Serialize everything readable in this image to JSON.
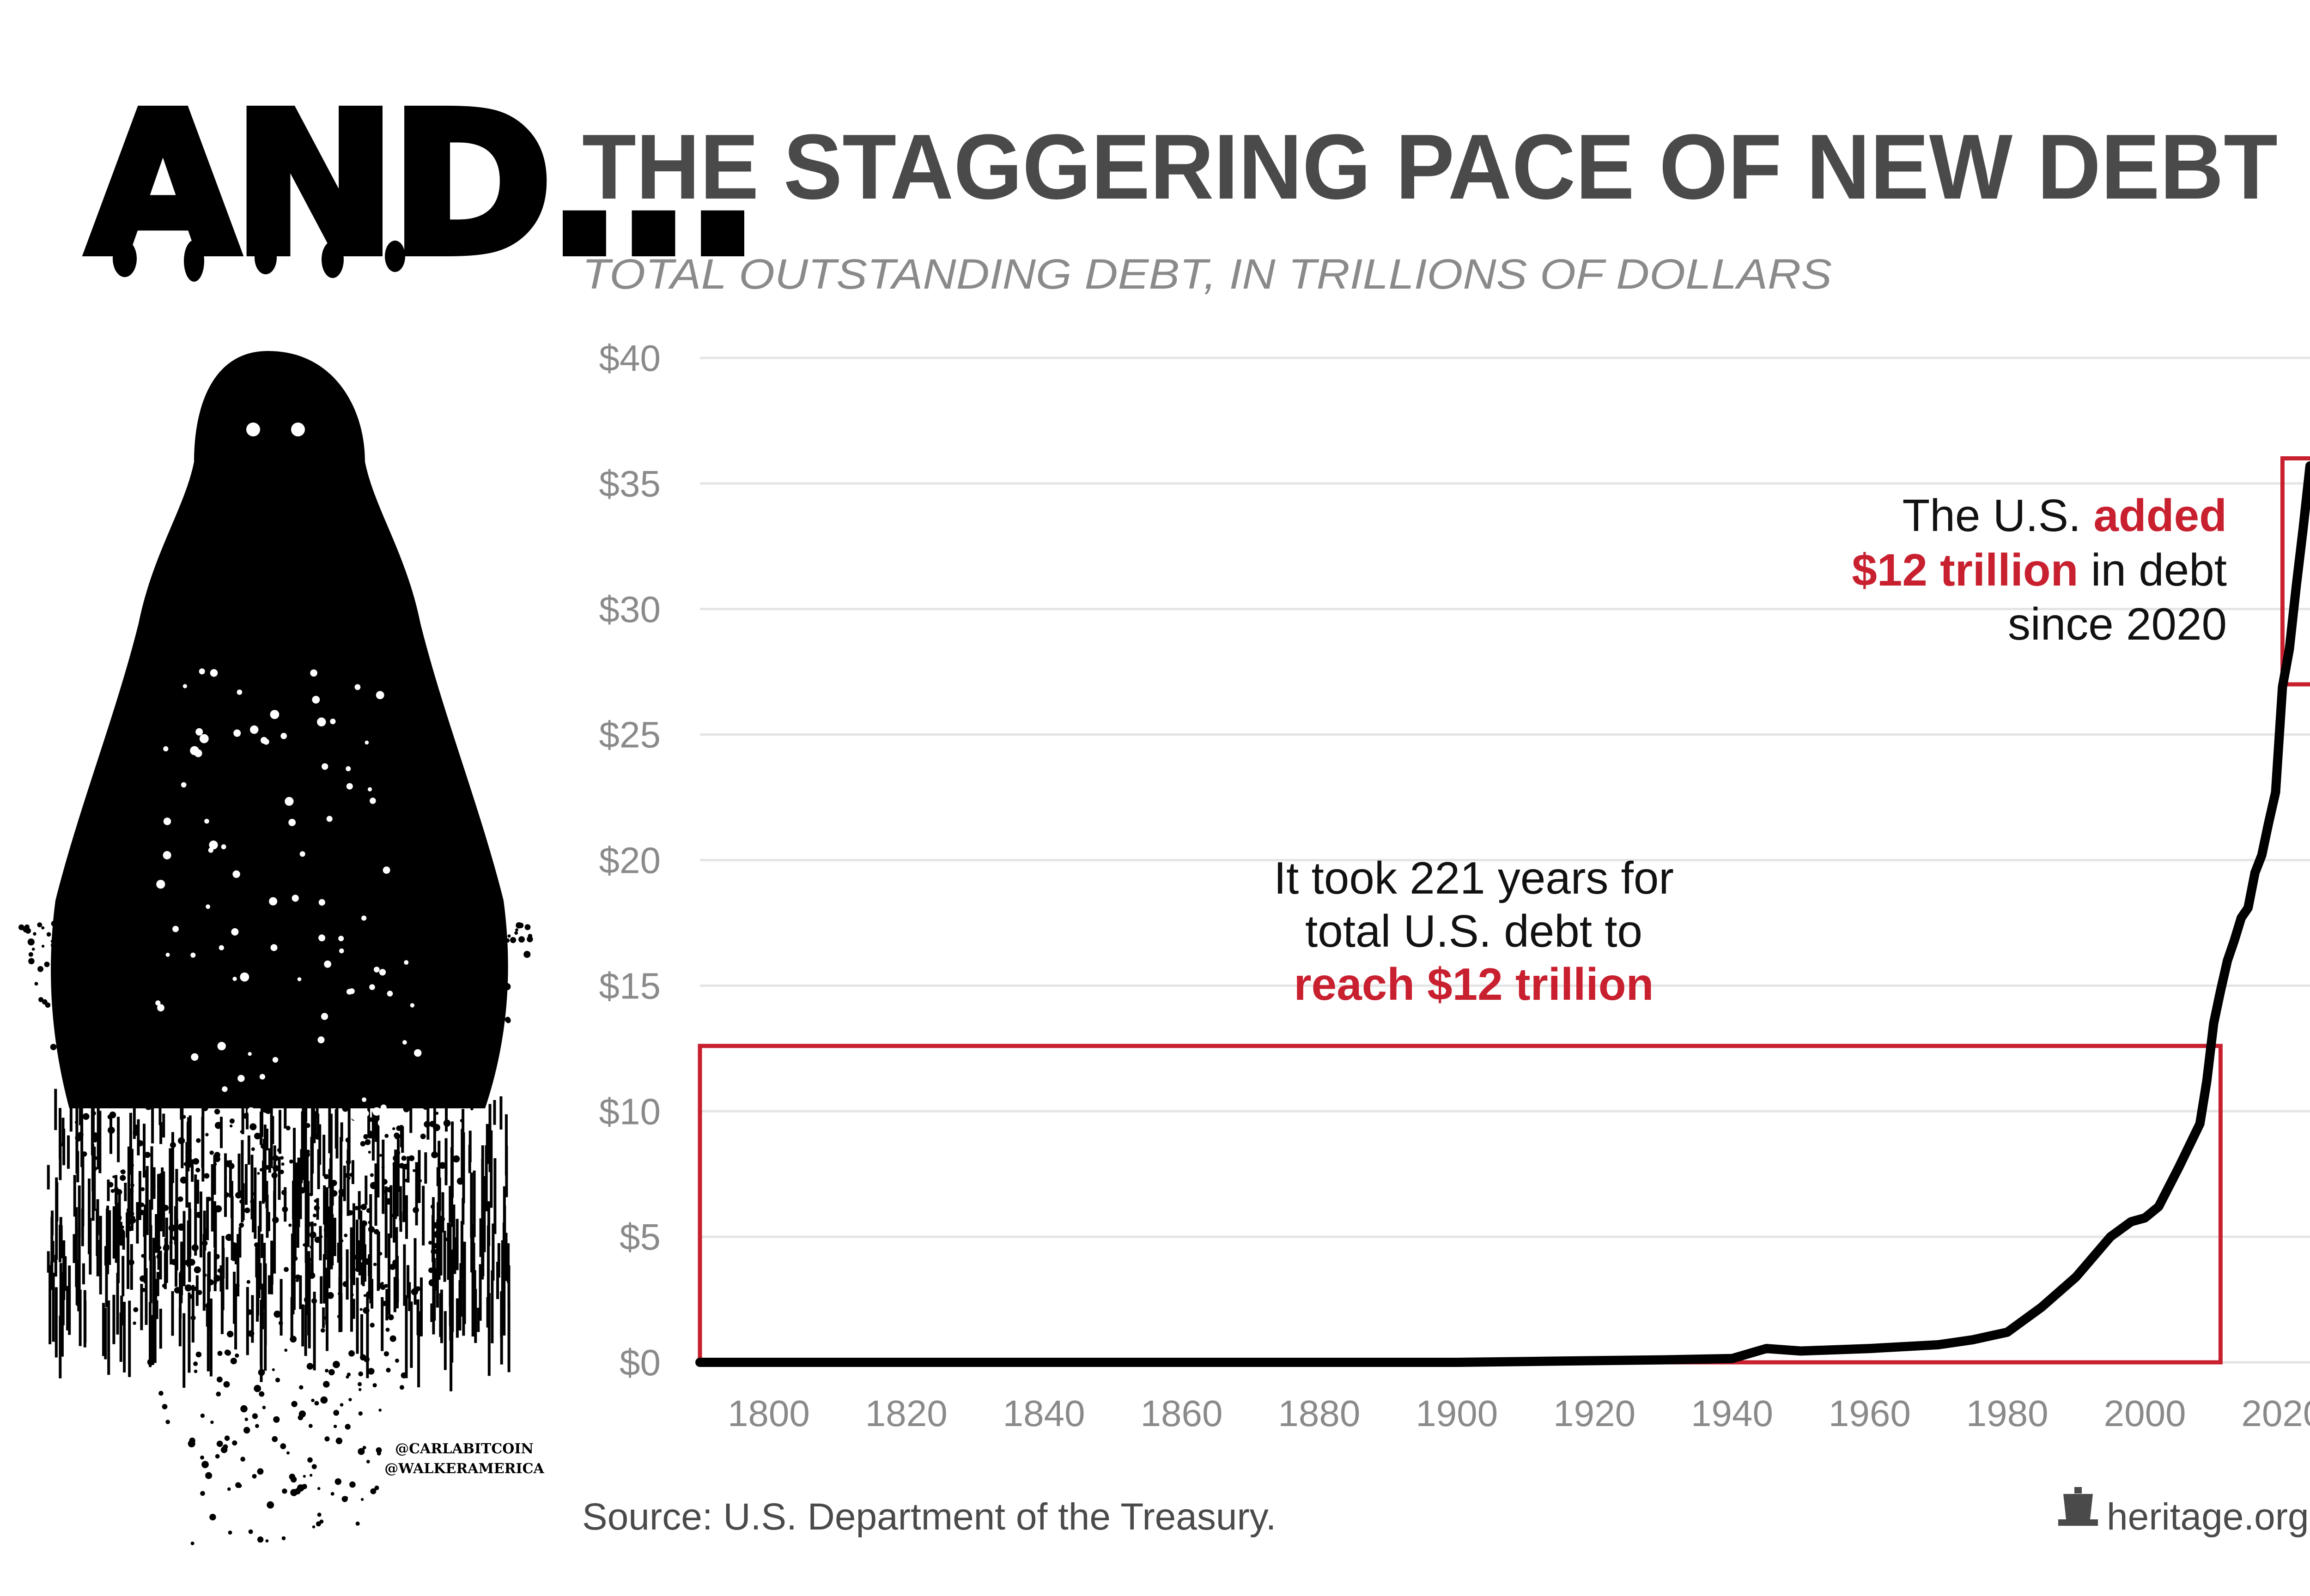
{
  "banner": {
    "text": "AND..."
  },
  "credits": {
    "line1": "@CARLABITCOIN",
    "line2": "@WALKERAMERICA"
  },
  "colors": {
    "accent": "#c8202f",
    "ink": "#000000",
    "title": "#4a4a4a",
    "muted": "#8a8a8a",
    "grid": "#e4e4e4"
  },
  "chart_data": {
    "type": "line",
    "title": "THE STAGGERING PACE OF NEW DEBT",
    "subtitle": "TOTAL OUTSTANDING DEBT, IN TRILLIONS OF DOLLARS",
    "xlabel": "",
    "ylabel": "",
    "xlim": [
      1790,
      2024
    ],
    "ylim": [
      0,
      40
    ],
    "x_ticks": [
      1800,
      1820,
      1840,
      1860,
      1880,
      1900,
      1920,
      1940,
      1960,
      1980,
      2000,
      2020
    ],
    "y_ticks": [
      0,
      5,
      10,
      15,
      20,
      25,
      30,
      35,
      40
    ],
    "y_tick_labels": [
      "$0",
      "$5",
      "$10",
      "$15",
      "$20",
      "$25",
      "$30",
      "$35",
      "$40"
    ],
    "grid": true,
    "series": [
      {
        "x": [
          1790,
          1800,
          1850,
          1900,
          1915,
          1930,
          1940,
          1945,
          1950,
          1960,
          1970,
          1975,
          1980,
          1985,
          1990,
          1995,
          1998,
          2000,
          2002,
          2005,
          2008,
          2009,
          2010,
          2011,
          2012,
          2013,
          2014,
          2015,
          2016,
          2017,
          2018,
          2019,
          2020,
          2021,
          2022,
          2023,
          2024
        ],
        "values": [
          0.0,
          0.0,
          0.0,
          0.0,
          0.05,
          0.1,
          0.15,
          0.55,
          0.45,
          0.55,
          0.7,
          0.9,
          1.2,
          2.2,
          3.4,
          5.0,
          5.6,
          5.75,
          6.2,
          7.8,
          9.5,
          11.2,
          13.5,
          14.8,
          16.0,
          16.8,
          17.7,
          18.1,
          19.5,
          20.2,
          21.5,
          22.7,
          26.9,
          28.4,
          30.9,
          33.2,
          35.7
        ]
      }
    ],
    "annotations": [
      {
        "parts": [
          {
            "text": "It took 221 years for",
            "accent": false
          }
        ]
      },
      {
        "parts": [
          {
            "text": "total U.S. debt to",
            "accent": false
          }
        ]
      },
      {
        "parts": [
          {
            "text": "reach $12 trillion",
            "accent": true
          }
        ]
      },
      {
        "parts": [
          {
            "text": "The U.S. ",
            "accent": false
          },
          {
            "text": "added",
            "accent": true
          }
        ]
      },
      {
        "parts": [
          {
            "text": "$12 trillion",
            "accent": true
          },
          {
            "text": " in debt",
            "accent": false
          }
        ]
      },
      {
        "parts": [
          {
            "text": "since 2020",
            "accent": false
          }
        ]
      }
    ],
    "highlight_boxes": [
      {
        "x_from": 1790,
        "x_to": 2011,
        "y_from": 0,
        "y_to": 12.6
      },
      {
        "x_from": 2020,
        "x_to": 2025,
        "y_from": 27,
        "y_to": 36
      }
    ],
    "source": "Source: U.S. Department of the Treasury.",
    "brand": "heritage.org"
  }
}
